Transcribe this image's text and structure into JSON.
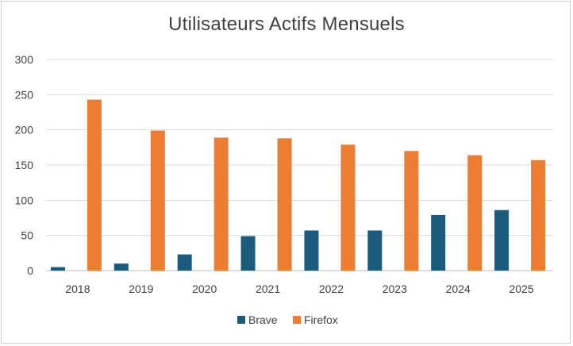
{
  "chart_data": {
    "type": "bar",
    "title": "Utilisateurs Actifs Mensuels",
    "categories": [
      "2018",
      "2019",
      "2020",
      "2021",
      "2022",
      "2023",
      "2024",
      "2025"
    ],
    "series": [
      {
        "name": "Brave",
        "color": "#1b5b7e",
        "values": [
          5,
          10,
          23,
          49,
          57,
          57,
          79,
          86
        ]
      },
      {
        "name": "Firefox",
        "color": "#ed7d31",
        "values": [
          243,
          199,
          189,
          188,
          179,
          170,
          164,
          157
        ]
      }
    ],
    "ylim": [
      0,
      300
    ],
    "yticks": [
      "0",
      "50",
      "100",
      "150",
      "200",
      "250",
      "300"
    ],
    "grid": true,
    "legend": "bottom"
  }
}
